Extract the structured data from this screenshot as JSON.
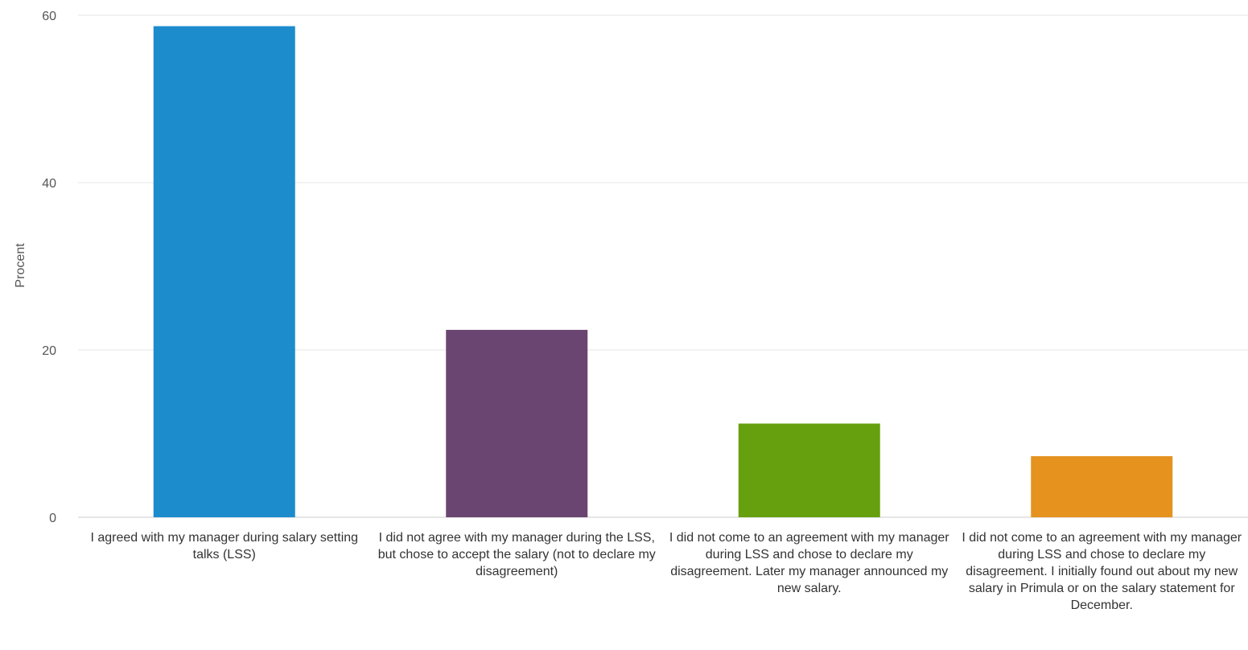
{
  "chart_data": {
    "type": "bar",
    "title": "",
    "xlabel": "",
    "ylabel": "Procent",
    "ylim": [
      0,
      60
    ],
    "yticks": [
      0,
      20,
      40,
      60
    ],
    "grid": true,
    "legend": "none",
    "categories": [
      "I agreed with my manager during salary setting talks (LSS)",
      "I did not agree with my manager during the LSS, but chose to accept the salary (not to declare my disagreement)",
      "I did not come to an agreement with my manager during LSS and chose to declare my disagreement. Later my manager announced my new salary.",
      "I did not come to an agreement with my manager during LSS and chose to declare my disagreement. I initially found out about my new salary in Primula or on the salary statement for December."
    ],
    "values": [
      58.7,
      22.4,
      11.2,
      7.3
    ],
    "colors": [
      "#1c8ccd",
      "#6b4571",
      "#66a00e",
      "#e5921f"
    ]
  }
}
